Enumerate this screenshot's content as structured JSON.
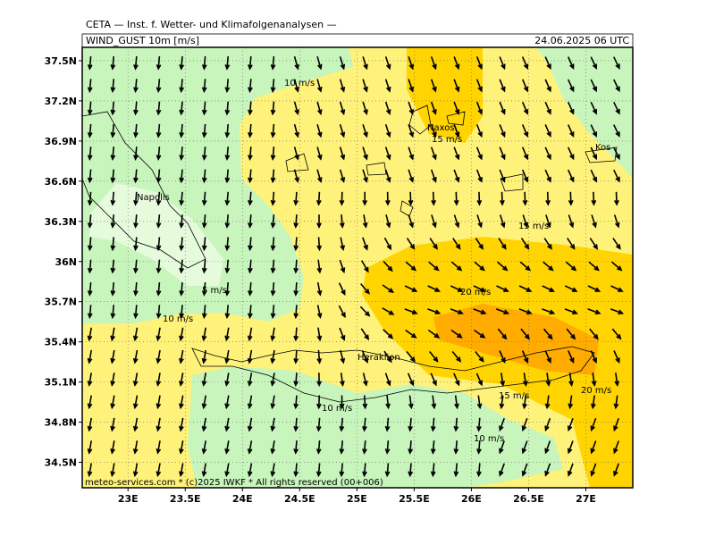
{
  "header": "CETA — Inst. f. Wetter- und Klimafolgenanalysen —",
  "title": "WIND_GUST 10m [m/s]",
  "valid": "24.06.2025 06 UTC",
  "footer": "meteo-services.com * (c)2025 IWKF * All rights reserved (00+006)",
  "map": {
    "lat_range": [
      34.31,
      37.6
    ],
    "lon_range": [
      22.6,
      27.41
    ],
    "lat_ticks": [
      {
        "value": 37.5,
        "label": "37.5N"
      },
      {
        "value": 37.2,
        "label": "37.2N"
      },
      {
        "value": 36.9,
        "label": "36.9N"
      },
      {
        "value": 36.6,
        "label": "36.6N"
      },
      {
        "value": 36.3,
        "label": "36.3N"
      },
      {
        "value": 36,
        "label": "36N"
      },
      {
        "value": 35.7,
        "label": "35.7N"
      },
      {
        "value": 35.4,
        "label": "35.4N"
      },
      {
        "value": 35.1,
        "label": "35.1N"
      },
      {
        "value": 34.8,
        "label": "34.8N"
      },
      {
        "value": 34.5,
        "label": "34.5N"
      }
    ],
    "lon_ticks": [
      {
        "value": 23,
        "label": "23E"
      },
      {
        "value": 23.5,
        "label": "23.5E"
      },
      {
        "value": 24,
        "label": "24E"
      },
      {
        "value": 24.5,
        "label": "24.5E"
      },
      {
        "value": 25,
        "label": "25E"
      },
      {
        "value": 25.5,
        "label": "25.5E"
      },
      {
        "value": 26,
        "label": "26E"
      },
      {
        "value": 26.5,
        "label": "26.5E"
      },
      {
        "value": 27,
        "label": "27E"
      }
    ]
  },
  "contour_labels": [
    "10 m/s",
    "15 m/s",
    "15 m/s",
    "5 m/s",
    "20 m/s",
    "10 m/s",
    "15 m/s",
    "20 m/s",
    "10 m/s",
    "10 m/s"
  ],
  "places": [
    "Naxos",
    "Kos",
    "Napolis",
    "Heraklion"
  ]
}
